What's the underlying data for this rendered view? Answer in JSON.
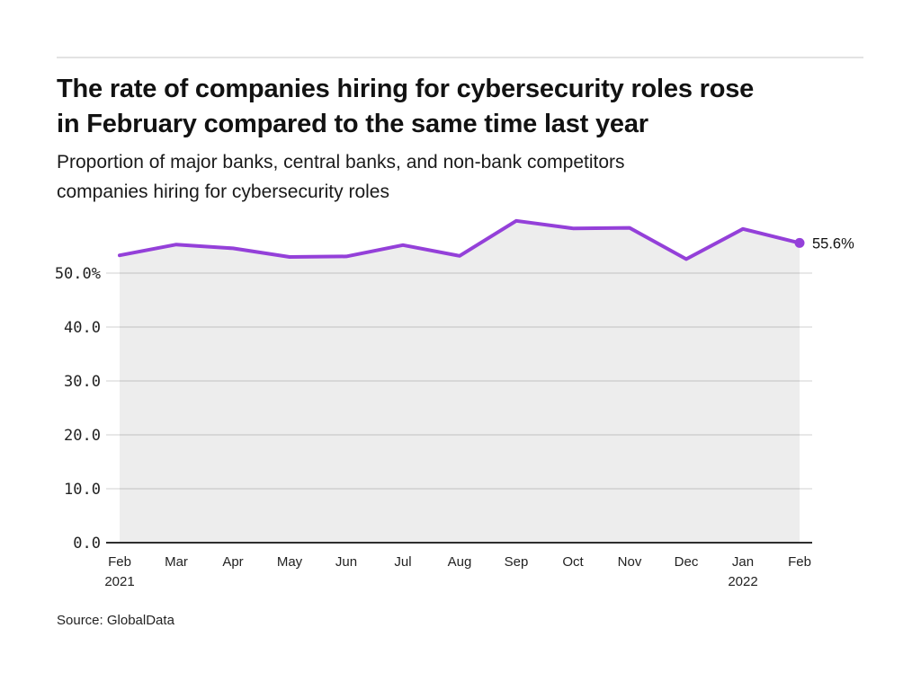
{
  "header": {
    "title_line1": "The rate of companies hiring for cybersecurity roles rose",
    "title_line2": "in February compared to the same time last year",
    "subtitle_line1": "Proportion of major banks, central banks, and non-bank competitors",
    "subtitle_line2": "companies hiring for cybersecurity roles"
  },
  "source": {
    "text": "Source: GlobalData"
  },
  "colors": {
    "line": "#9440d9",
    "area_fill": "rgba(0,0,0,0.07)",
    "gridline": "#e0e0e0",
    "axis": "#2e2e2e",
    "divider": "#e3e3e3",
    "title_text": "#121212",
    "tick_text": "#222222"
  },
  "chart_data": {
    "type": "line",
    "title": "The rate of companies hiring for cybersecurity roles rose in February compared to the same time last year",
    "subtitle": "Proportion of major banks, central banks, and non-bank competitors companies hiring for cybersecurity roles",
    "x": [
      "Feb 2021",
      "Mar 2021",
      "Apr 2021",
      "May 2021",
      "Jun 2021",
      "Jul 2021",
      "Aug 2021",
      "Sep 2021",
      "Oct 2021",
      "Nov 2021",
      "Dec 2021",
      "Jan 2022",
      "Feb 2022"
    ],
    "x_labels": [
      {
        "label": "Feb",
        "sublabel": "2021"
      },
      {
        "label": "Mar"
      },
      {
        "label": "Apr"
      },
      {
        "label": "May"
      },
      {
        "label": "Jun"
      },
      {
        "label": "Jul"
      },
      {
        "label": "Aug"
      },
      {
        "label": "Sep"
      },
      {
        "label": "Oct"
      },
      {
        "label": "Nov"
      },
      {
        "label": "Dec"
      },
      {
        "label": "Jan",
        "sublabel": "2022"
      },
      {
        "label": "Feb"
      }
    ],
    "series": [
      {
        "name": "Proportion of companies hiring for cybersecurity roles (%)",
        "values": [
          53.3,
          55.3,
          54.6,
          53.0,
          53.1,
          55.2,
          53.2,
          59.7,
          58.3,
          58.4,
          52.6,
          58.2,
          55.6
        ]
      }
    ],
    "yticks": [
      {
        "value": 0,
        "label": "0.0"
      },
      {
        "value": 10,
        "label": "10.0"
      },
      {
        "value": 20,
        "label": "20.0"
      },
      {
        "value": 30,
        "label": "30.0"
      },
      {
        "value": 40,
        "label": "40.0"
      },
      {
        "value": 50,
        "label": "50.0%"
      }
    ],
    "ylim": [
      0,
      62
    ],
    "grid": "horizontal",
    "legend": "none",
    "end_label": "55.6%",
    "source": "GlobalData"
  }
}
